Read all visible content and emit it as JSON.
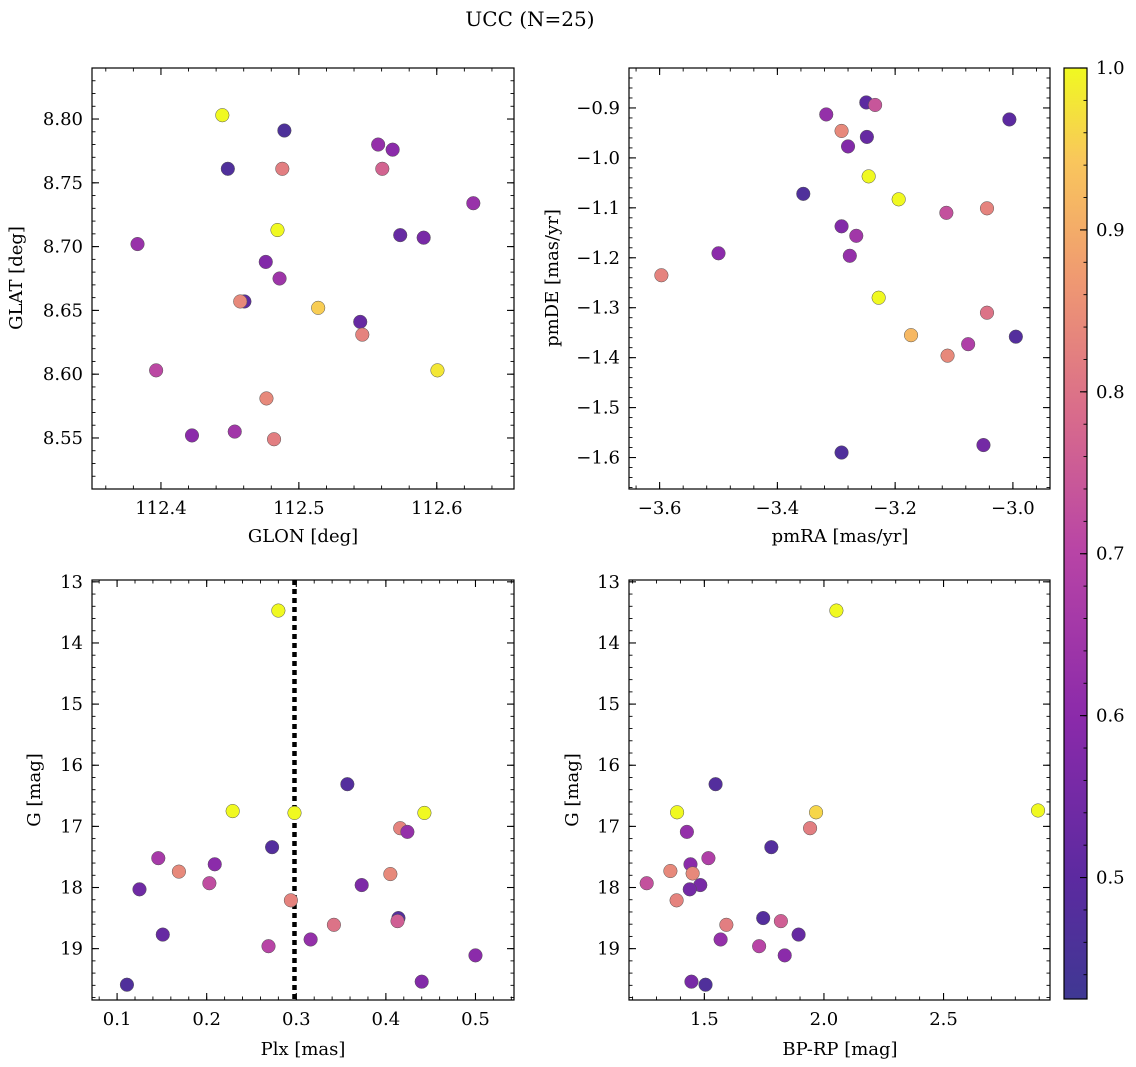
{
  "figure": {
    "title": "UCC (N=25)"
  },
  "colorbar": {
    "min": 0.425,
    "max": 1.0,
    "ticks": [
      0.5,
      0.6,
      0.7,
      0.8,
      0.9,
      1.0
    ],
    "tick_labels": [
      "0.5",
      "0.6",
      "0.7",
      "0.8",
      "0.9",
      "1.0"
    ],
    "colormap": "plasma"
  },
  "chart_data": [
    {
      "type": "scatter",
      "xlabel": "GLON [deg]",
      "ylabel": "GLAT [deg]",
      "xlim": [
        112.35,
        112.656
      ],
      "ylim": [
        8.51,
        8.84
      ],
      "xticks": [
        112.4,
        112.5,
        112.6
      ],
      "xtick_labels": [
        "112.4",
        "112.5",
        "112.6"
      ],
      "yticks": [
        8.55,
        8.6,
        8.65,
        8.7,
        8.75,
        8.8
      ],
      "ytick_labels": [
        "8.55",
        "8.60",
        "8.65",
        "8.70",
        "8.75",
        "8.80"
      ],
      "invert_y": false,
      "points": [
        {
          "x": 112.4445,
          "y": 8.803,
          "c": 1.0
        },
        {
          "x": 112.4895,
          "y": 8.791,
          "c": 0.46
        },
        {
          "x": 112.4485,
          "y": 8.761,
          "c": 0.47
        },
        {
          "x": 112.488,
          "y": 8.761,
          "c": 0.82
        },
        {
          "x": 112.5575,
          "y": 8.78,
          "c": 0.62
        },
        {
          "x": 112.568,
          "y": 8.776,
          "c": 0.6
        },
        {
          "x": 112.5605,
          "y": 8.761,
          "c": 0.77
        },
        {
          "x": 112.6265,
          "y": 8.734,
          "c": 0.63
        },
        {
          "x": 112.4845,
          "y": 8.713,
          "c": 1.0
        },
        {
          "x": 112.5735,
          "y": 8.709,
          "c": 0.52
        },
        {
          "x": 112.5905,
          "y": 8.707,
          "c": 0.56
        },
        {
          "x": 112.383,
          "y": 8.702,
          "c": 0.63
        },
        {
          "x": 112.476,
          "y": 8.688,
          "c": 0.58
        },
        {
          "x": 112.486,
          "y": 8.675,
          "c": 0.64
        },
        {
          "x": 112.4605,
          "y": 8.657,
          "c": 0.5
        },
        {
          "x": 112.4575,
          "y": 8.657,
          "c": 0.84
        },
        {
          "x": 112.514,
          "y": 8.652,
          "c": 0.95
        },
        {
          "x": 112.5445,
          "y": 8.641,
          "c": 0.52
        },
        {
          "x": 112.546,
          "y": 8.631,
          "c": 0.83
        },
        {
          "x": 112.3965,
          "y": 8.603,
          "c": 0.71
        },
        {
          "x": 112.6005,
          "y": 8.603,
          "c": 0.98
        },
        {
          "x": 112.4765,
          "y": 8.581,
          "c": 0.84
        },
        {
          "x": 112.4535,
          "y": 8.555,
          "c": 0.65
        },
        {
          "x": 112.4225,
          "y": 8.552,
          "c": 0.6
        },
        {
          "x": 112.482,
          "y": 8.549,
          "c": 0.82
        }
      ]
    },
    {
      "type": "scatter",
      "xlabel": "pmRA [mas/yr]",
      "ylabel": "pmDE [mas/yr]",
      "xlim": [
        -3.652,
        -2.937
      ],
      "ylim": [
        -1.663,
        -0.82
      ],
      "xticks": [
        -3.6,
        -3.4,
        -3.2,
        -3.0
      ],
      "xtick_labels": [
        "−3.6",
        "−3.4",
        "−3.2",
        "−3.0"
      ],
      "yticks": [
        -1.6,
        -1.5,
        -1.4,
        -1.3,
        -1.2,
        -1.1,
        -1.0,
        -0.9
      ],
      "ytick_labels": [
        "−1.6",
        "−1.5",
        "−1.4",
        "−1.3",
        "−1.2",
        "−1.1",
        "−1.0",
        "−0.9"
      ],
      "invert_y": false,
      "points": [
        {
          "x": -3.249,
          "y": -0.889,
          "c": 0.5
        },
        {
          "x": -3.234,
          "y": -0.894,
          "c": 0.74
        },
        {
          "x": -3.317,
          "y": -0.913,
          "c": 0.62
        },
        {
          "x": -3.006,
          "y": -0.923,
          "c": 0.5
        },
        {
          "x": -3.291,
          "y": -0.946,
          "c": 0.84
        },
        {
          "x": -3.248,
          "y": -0.958,
          "c": 0.52
        },
        {
          "x": -3.28,
          "y": -0.977,
          "c": 0.58
        },
        {
          "x": -3.245,
          "y": -1.037,
          "c": 1.0
        },
        {
          "x": -3.356,
          "y": -1.072,
          "c": 0.47
        },
        {
          "x": -3.194,
          "y": -1.083,
          "c": 1.0
        },
        {
          "x": -3.044,
          "y": -1.101,
          "c": 0.83
        },
        {
          "x": -3.113,
          "y": -1.11,
          "c": 0.73
        },
        {
          "x": -3.291,
          "y": -1.137,
          "c": 0.58
        },
        {
          "x": -3.266,
          "y": -1.156,
          "c": 0.65
        },
        {
          "x": -3.5,
          "y": -1.191,
          "c": 0.6
        },
        {
          "x": -3.277,
          "y": -1.196,
          "c": 0.62
        },
        {
          "x": -3.597,
          "y": -1.235,
          "c": 0.83
        },
        {
          "x": -3.228,
          "y": -1.28,
          "c": 1.0
        },
        {
          "x": -3.044,
          "y": -1.31,
          "c": 0.8
        },
        {
          "x": -3.173,
          "y": -1.355,
          "c": 0.92
        },
        {
          "x": -2.995,
          "y": -1.358,
          "c": 0.48
        },
        {
          "x": -3.076,
          "y": -1.373,
          "c": 0.68
        },
        {
          "x": -3.111,
          "y": -1.396,
          "c": 0.84
        },
        {
          "x": -3.05,
          "y": -1.575,
          "c": 0.55
        },
        {
          "x": -3.291,
          "y": -1.59,
          "c": 0.47
        }
      ]
    },
    {
      "type": "scatter",
      "xlabel": "Plx [mas]",
      "ylabel": "G [mag]",
      "xlim": [
        0.072,
        0.543
      ],
      "ylim": [
        19.84,
        12.97
      ],
      "xticks": [
        0.1,
        0.2,
        0.3,
        0.4,
        0.5
      ],
      "xtick_labels": [
        "0.1",
        "0.2",
        "0.3",
        "0.4",
        "0.5"
      ],
      "yticks": [
        13,
        14,
        15,
        16,
        17,
        18,
        19
      ],
      "ytick_labels": [
        "13",
        "14",
        "15",
        "16",
        "17",
        "18",
        "19"
      ],
      "invert_y": true,
      "vline_x": 0.298,
      "points": [
        {
          "x": 0.28,
          "y": 13.47,
          "c": 1.0
        },
        {
          "x": 0.357,
          "y": 16.31,
          "c": 0.48
        },
        {
          "x": 0.229,
          "y": 16.75,
          "c": 1.0
        },
        {
          "x": 0.298,
          "y": 16.78,
          "c": 1.0
        },
        {
          "x": 0.443,
          "y": 16.78,
          "c": 1.0
        },
        {
          "x": 0.416,
          "y": 17.03,
          "c": 0.83
        },
        {
          "x": 0.424,
          "y": 17.09,
          "c": 0.62
        },
        {
          "x": 0.273,
          "y": 17.34,
          "c": 0.48
        },
        {
          "x": 0.146,
          "y": 17.52,
          "c": 0.66
        },
        {
          "x": 0.209,
          "y": 17.62,
          "c": 0.6
        },
        {
          "x": 0.169,
          "y": 17.74,
          "c": 0.84
        },
        {
          "x": 0.405,
          "y": 17.78,
          "c": 0.84
        },
        {
          "x": 0.203,
          "y": 17.93,
          "c": 0.72
        },
        {
          "x": 0.373,
          "y": 17.96,
          "c": 0.57
        },
        {
          "x": 0.125,
          "y": 18.03,
          "c": 0.54
        },
        {
          "x": 0.294,
          "y": 18.21,
          "c": 0.83
        },
        {
          "x": 0.414,
          "y": 18.5,
          "c": 0.48
        },
        {
          "x": 0.413,
          "y": 18.55,
          "c": 0.76
        },
        {
          "x": 0.342,
          "y": 18.61,
          "c": 0.8
        },
        {
          "x": 0.151,
          "y": 18.77,
          "c": 0.52
        },
        {
          "x": 0.316,
          "y": 18.85,
          "c": 0.62
        },
        {
          "x": 0.269,
          "y": 18.96,
          "c": 0.7
        },
        {
          "x": 0.5,
          "y": 19.11,
          "c": 0.6
        },
        {
          "x": 0.44,
          "y": 19.54,
          "c": 0.58
        },
        {
          "x": 0.111,
          "y": 19.59,
          "c": 0.47
        }
      ]
    },
    {
      "type": "scatter",
      "xlabel": "BP-RP [mag]",
      "ylabel": "G [mag]",
      "xlim": [
        1.185,
        2.945
      ],
      "ylim": [
        19.84,
        12.97
      ],
      "xticks": [
        1.5,
        2.0,
        2.5
      ],
      "xtick_labels": [
        "1.5",
        "2.0",
        "2.5"
      ],
      "yticks": [
        13,
        14,
        15,
        16,
        17,
        18,
        19
      ],
      "ytick_labels": [
        "13",
        "14",
        "15",
        "16",
        "17",
        "18",
        "19"
      ],
      "invert_y": true,
      "points": [
        {
          "x": 2.052,
          "y": 13.47,
          "c": 1.0
        },
        {
          "x": 1.547,
          "y": 16.31,
          "c": 0.48
        },
        {
          "x": 2.895,
          "y": 16.74,
          "c": 1.0
        },
        {
          "x": 1.386,
          "y": 16.77,
          "c": 1.0
        },
        {
          "x": 1.967,
          "y": 16.77,
          "c": 0.96
        },
        {
          "x": 1.942,
          "y": 17.03,
          "c": 0.82
        },
        {
          "x": 1.427,
          "y": 17.09,
          "c": 0.62
        },
        {
          "x": 1.78,
          "y": 17.34,
          "c": 0.48
        },
        {
          "x": 1.517,
          "y": 17.52,
          "c": 0.68
        },
        {
          "x": 1.442,
          "y": 17.62,
          "c": 0.6
        },
        {
          "x": 1.358,
          "y": 17.73,
          "c": 0.84
        },
        {
          "x": 1.451,
          "y": 17.77,
          "c": 0.84
        },
        {
          "x": 1.259,
          "y": 17.93,
          "c": 0.73
        },
        {
          "x": 1.483,
          "y": 17.96,
          "c": 0.56
        },
        {
          "x": 1.439,
          "y": 18.03,
          "c": 0.55
        },
        {
          "x": 1.384,
          "y": 18.21,
          "c": 0.83
        },
        {
          "x": 1.746,
          "y": 18.5,
          "c": 0.48
        },
        {
          "x": 1.82,
          "y": 18.55,
          "c": 0.76
        },
        {
          "x": 1.592,
          "y": 18.61,
          "c": 0.82
        },
        {
          "x": 1.894,
          "y": 18.77,
          "c": 0.52
        },
        {
          "x": 1.568,
          "y": 18.85,
          "c": 0.62
        },
        {
          "x": 1.729,
          "y": 18.96,
          "c": 0.7
        },
        {
          "x": 1.836,
          "y": 19.11,
          "c": 0.6
        },
        {
          "x": 1.446,
          "y": 19.54,
          "c": 0.56
        },
        {
          "x": 1.505,
          "y": 19.59,
          "c": 0.47
        }
      ]
    }
  ]
}
